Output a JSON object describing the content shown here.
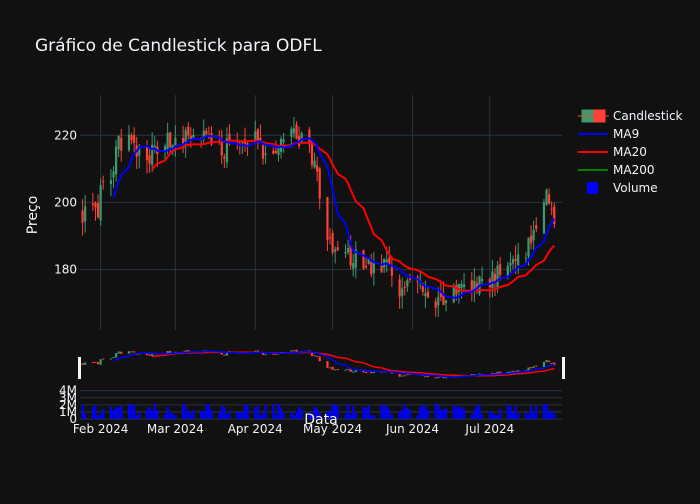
{
  "chart_data": {
    "type": "candlestick",
    "title": "Gráfico de Candlestick para ODFL",
    "xlabel": "Data",
    "ylabel": "Preço",
    "ylim": [
      162,
      232
    ],
    "yticks": [
      180,
      200,
      220
    ],
    "xlim": [
      "2024-01-24",
      "2024-07-29"
    ],
    "xticks": [
      {
        "date": "2024-02-01",
        "label": "Feb 2024"
      },
      {
        "date": "2024-03-01",
        "label": "Mar 2024"
      },
      {
        "date": "2024-04-01",
        "label": "Apr 2024"
      },
      {
        "date": "2024-05-01",
        "label": "May 2024"
      },
      {
        "date": "2024-06-01",
        "label": "Jun 2024"
      },
      {
        "date": "2024-07-01",
        "label": "Jul 2024"
      }
    ],
    "legend_position": "top-right",
    "legend": [
      {
        "name": "Candlestick",
        "kind": "candle"
      },
      {
        "name": "MA9",
        "kind": "line",
        "color": "#0000ff"
      },
      {
        "name": "MA20",
        "kind": "line",
        "color": "#ff0000"
      },
      {
        "name": "MA200",
        "kind": "line",
        "color": "#008000"
      },
      {
        "name": "Volume",
        "kind": "box",
        "color": "#0000ff"
      }
    ],
    "colors": {
      "up": "#3d9970",
      "down": "#ff4136",
      "ma9": "#0000ff",
      "ma20": "#ff0000",
      "volume": "#0000ff"
    },
    "volume_yticks": [
      {
        "value": 0,
        "label": "0"
      },
      {
        "value": 1000000,
        "label": "1M"
      },
      {
        "value": 2000000,
        "label": "2M"
      },
      {
        "value": 3000000,
        "label": "3M"
      },
      {
        "value": 4000000,
        "label": "4M"
      }
    ],
    "volume_ylim": [
      0,
      4800000
    ],
    "price_anchors": [
      [
        "2024-01-25",
        197
      ],
      [
        "2024-01-31",
        196
      ],
      [
        "2024-02-01",
        203
      ],
      [
        "2024-02-05",
        208
      ],
      [
        "2024-02-08",
        217
      ],
      [
        "2024-02-13",
        219
      ],
      [
        "2024-02-16",
        215
      ],
      [
        "2024-02-22",
        214
      ],
      [
        "2024-02-27",
        218
      ],
      [
        "2024-03-04",
        220
      ],
      [
        "2024-03-08",
        222
      ],
      [
        "2024-03-12",
        220
      ],
      [
        "2024-03-15",
        217
      ],
      [
        "2024-03-20",
        216
      ],
      [
        "2024-03-26",
        218
      ],
      [
        "2024-04-01",
        219
      ],
      [
        "2024-04-05",
        215
      ],
      [
        "2024-04-10",
        217
      ],
      [
        "2024-04-15",
        221
      ],
      [
        "2024-04-19",
        219
      ],
      [
        "2024-04-24",
        212
      ],
      [
        "2024-04-26",
        202
      ],
      [
        "2024-04-30",
        188
      ],
      [
        "2024-05-03",
        183
      ],
      [
        "2024-05-08",
        184
      ],
      [
        "2024-05-13",
        183
      ],
      [
        "2024-05-17",
        181
      ],
      [
        "2024-05-22",
        182
      ],
      [
        "2024-05-24",
        176
      ],
      [
        "2024-05-29",
        174
      ],
      [
        "2024-06-03",
        176
      ],
      [
        "2024-06-07",
        171
      ],
      [
        "2024-06-12",
        172
      ],
      [
        "2024-06-17",
        174
      ],
      [
        "2024-06-24",
        175
      ],
      [
        "2024-06-28",
        176
      ],
      [
        "2024-07-03",
        178
      ],
      [
        "2024-07-09",
        180
      ],
      [
        "2024-07-12",
        183
      ],
      [
        "2024-07-16",
        187
      ],
      [
        "2024-07-19",
        195
      ],
      [
        "2024-07-23",
        201
      ],
      [
        "2024-07-26",
        195
      ],
      [
        "2024-07-29",
        194
      ]
    ]
  }
}
